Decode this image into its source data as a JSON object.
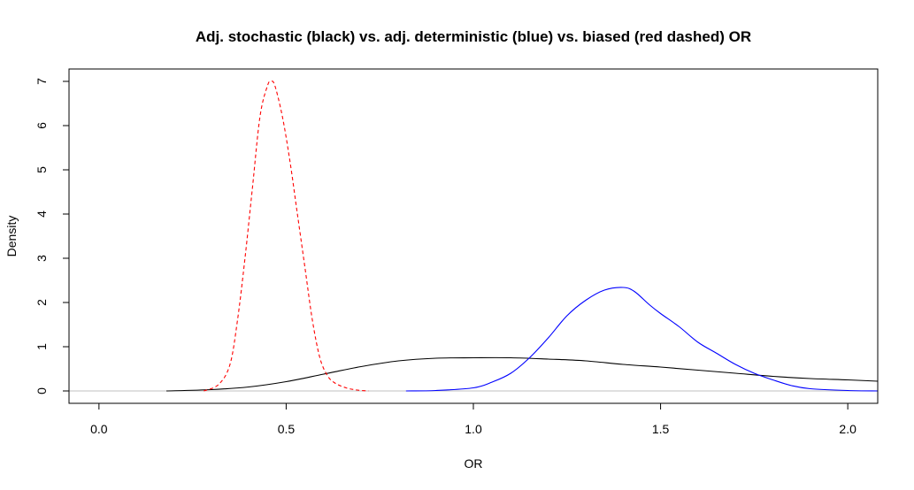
{
  "chart_data": {
    "type": "line",
    "title": "Adj. stochastic (black) vs. adj. deterministic (blue) vs. biased (red dashed) OR",
    "xlabel": "OR",
    "ylabel": "Density",
    "xlim": [
      -0.08,
      2.08
    ],
    "ylim": [
      -0.28,
      7.28
    ],
    "x_ticks": [
      0.0,
      0.5,
      1.0,
      1.5,
      2.0
    ],
    "x_tick_labels": [
      "0.0",
      "0.5",
      "1.0",
      "1.5",
      "2.0"
    ],
    "y_ticks": [
      0,
      1,
      2,
      3,
      4,
      5,
      6,
      7
    ],
    "y_tick_labels": [
      "0",
      "1",
      "2",
      "3",
      "4",
      "5",
      "6",
      "7"
    ],
    "grid": false,
    "baseline": {
      "y": 0,
      "color": "#c0c0c0"
    },
    "series": [
      {
        "color": "#000000",
        "dash": "solid",
        "x": [
          0.18,
          0.3,
          0.4,
          0.5,
          0.6,
          0.7,
          0.8,
          0.9,
          1.0,
          1.1,
          1.2,
          1.3,
          1.4,
          1.5,
          1.6,
          1.7,
          1.8,
          1.9,
          2.0,
          2.08
        ],
        "y": [
          0.0,
          0.03,
          0.09,
          0.21,
          0.38,
          0.55,
          0.68,
          0.74,
          0.75,
          0.75,
          0.72,
          0.68,
          0.6,
          0.54,
          0.47,
          0.4,
          0.33,
          0.28,
          0.25,
          0.22
        ]
      },
      {
        "color": "#0000ff",
        "dash": "solid",
        "x": [
          0.82,
          0.9,
          1.0,
          1.05,
          1.1,
          1.15,
          1.2,
          1.25,
          1.3,
          1.35,
          1.4,
          1.43,
          1.47,
          1.5,
          1.55,
          1.6,
          1.65,
          1.7,
          1.75,
          1.8,
          1.85,
          1.9,
          2.0,
          2.08
        ],
        "y": [
          0.0,
          0.01,
          0.07,
          0.2,
          0.4,
          0.75,
          1.2,
          1.7,
          2.05,
          2.28,
          2.34,
          2.25,
          1.95,
          1.75,
          1.45,
          1.1,
          0.85,
          0.6,
          0.4,
          0.25,
          0.12,
          0.05,
          0.01,
          0.0
        ]
      },
      {
        "color": "#ff0000",
        "dash": "dashed",
        "x": [
          0.28,
          0.32,
          0.35,
          0.37,
          0.39,
          0.41,
          0.43,
          0.45,
          0.46,
          0.47,
          0.49,
          0.51,
          0.53,
          0.55,
          0.57,
          0.59,
          0.61,
          0.63,
          0.66,
          0.69,
          0.72
        ],
        "y": [
          0.0,
          0.15,
          0.6,
          1.6,
          3.0,
          4.6,
          6.2,
          6.9,
          7.0,
          6.9,
          6.2,
          5.2,
          4.0,
          2.8,
          1.6,
          0.75,
          0.35,
          0.18,
          0.07,
          0.02,
          0.0
        ]
      }
    ]
  }
}
